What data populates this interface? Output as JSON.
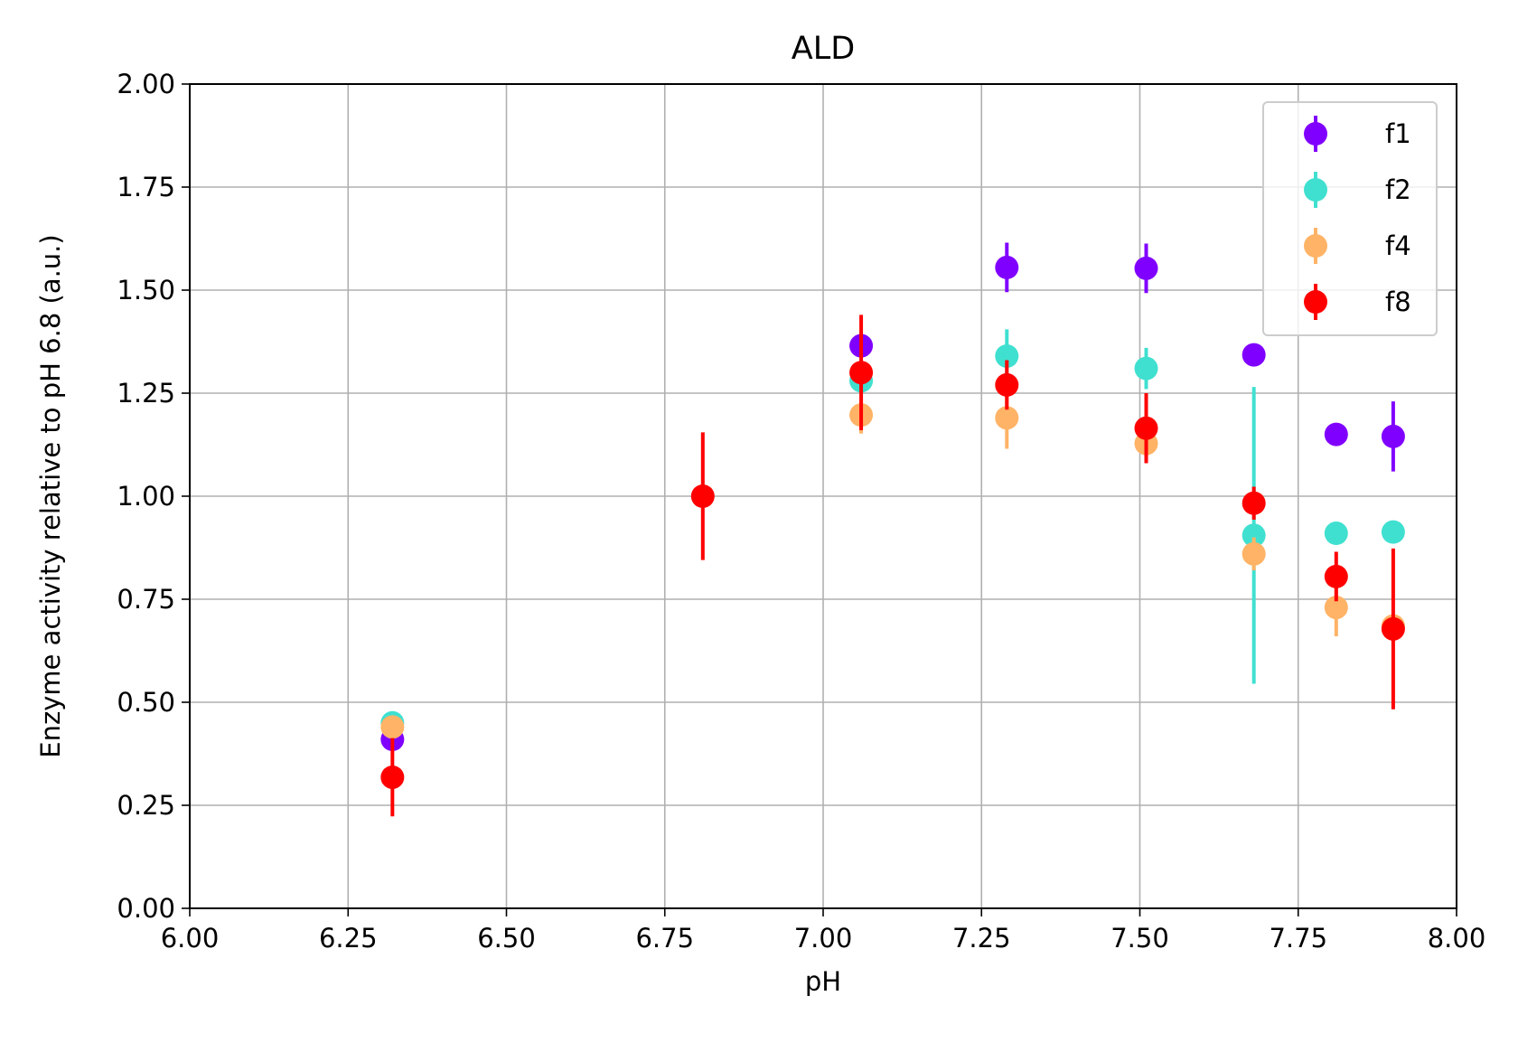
{
  "chart_data": {
    "type": "scatter",
    "title": "ALD",
    "xlabel": "pH",
    "ylabel": "Enzyme activity relative to pH 6.8 (a.u.)",
    "xlim": [
      6.0,
      8.0
    ],
    "ylim": [
      0.0,
      2.0
    ],
    "xticks": [
      "6.00",
      "6.25",
      "6.50",
      "6.75",
      "7.00",
      "7.25",
      "7.50",
      "7.75",
      "8.00"
    ],
    "yticks": [
      "0.00",
      "0.25",
      "0.50",
      "0.75",
      "1.00",
      "1.25",
      "1.50",
      "1.75",
      "2.00"
    ],
    "grid": true,
    "legend_position": "top-right",
    "error_bars": true,
    "series": [
      {
        "name": "f1",
        "color": "#8000ff",
        "points": [
          {
            "x": 6.32,
            "y": 0.41,
            "err": 0.02
          },
          {
            "x": 7.06,
            "y": 1.365,
            "err": 0.02
          },
          {
            "x": 7.29,
            "y": 1.555,
            "err": 0.06
          },
          {
            "x": 7.51,
            "y": 1.553,
            "err": 0.06
          },
          {
            "x": 7.68,
            "y": 1.343,
            "err": 0.015
          },
          {
            "x": 7.81,
            "y": 1.15,
            "err": 0.015
          },
          {
            "x": 7.9,
            "y": 1.145,
            "err": 0.085
          }
        ]
      },
      {
        "name": "f2",
        "color": "#40e0d0",
        "points": [
          {
            "x": 6.32,
            "y": 0.45,
            "err": 0.015
          },
          {
            "x": 7.06,
            "y": 1.28,
            "err": 0.02
          },
          {
            "x": 7.29,
            "y": 1.34,
            "err": 0.065
          },
          {
            "x": 7.51,
            "y": 1.31,
            "err": 0.05
          },
          {
            "x": 7.68,
            "y": 0.905,
            "err": 0.36
          },
          {
            "x": 7.81,
            "y": 0.91,
            "err": 0.015
          },
          {
            "x": 7.9,
            "y": 0.913,
            "err": 0.015
          }
        ]
      },
      {
        "name": "f4",
        "color": "#ffb366",
        "points": [
          {
            "x": 6.32,
            "y": 0.44,
            "err": 0.015
          },
          {
            "x": 7.06,
            "y": 1.197,
            "err": 0.045
          },
          {
            "x": 7.29,
            "y": 1.19,
            "err": 0.075
          },
          {
            "x": 7.51,
            "y": 1.128,
            "err": 0.035
          },
          {
            "x": 7.68,
            "y": 0.86,
            "err": 0.04
          },
          {
            "x": 7.81,
            "y": 0.73,
            "err": 0.07
          },
          {
            "x": 7.9,
            "y": 0.685,
            "err": 0.015
          }
        ]
      },
      {
        "name": "f8",
        "color": "#ff0000",
        "points": [
          {
            "x": 6.32,
            "y": 0.318,
            "err": 0.095
          },
          {
            "x": 6.81,
            "y": 1.0,
            "err": 0.155
          },
          {
            "x": 7.06,
            "y": 1.3,
            "err": 0.14
          },
          {
            "x": 7.29,
            "y": 1.27,
            "err": 0.06
          },
          {
            "x": 7.51,
            "y": 1.165,
            "err": 0.085
          },
          {
            "x": 7.68,
            "y": 0.983,
            "err": 0.04
          },
          {
            "x": 7.81,
            "y": 0.805,
            "err": 0.06
          },
          {
            "x": 7.9,
            "y": 0.678,
            "err": 0.195
          }
        ]
      }
    ]
  }
}
